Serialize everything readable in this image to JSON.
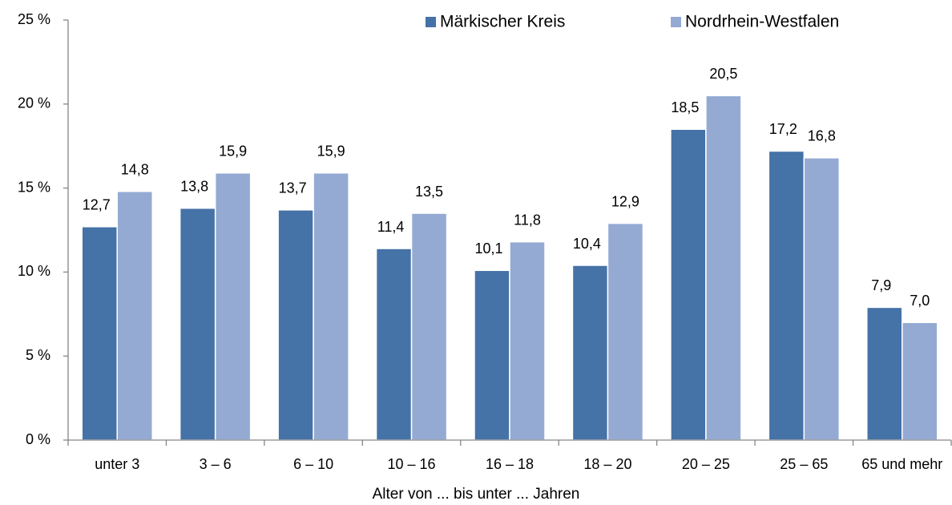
{
  "chart_data": {
    "type": "bar",
    "x_label": "Alter von ... bis unter ... Jahren",
    "categories": [
      "unter 3",
      "3 – 6",
      "6 – 10",
      "10 – 16",
      "16 – 18",
      "18 – 20",
      "20 – 25",
      "25 – 65",
      "65 und mehr"
    ],
    "series": [
      {
        "name": "Märkischer Kreis",
        "color": "#4572a7",
        "values": [
          12.7,
          13.8,
          13.7,
          11.4,
          10.1,
          10.4,
          18.5,
          17.2,
          7.9
        ],
        "value_labels": [
          "12,7",
          "13,8",
          "13,7",
          "11,4",
          "10,1",
          "10,4",
          "18,5",
          "17,2",
          "7,9"
        ]
      },
      {
        "name": "Nordrhein-Westfalen",
        "color": "#94aad3",
        "values": [
          14.8,
          15.9,
          15.9,
          13.5,
          11.8,
          12.9,
          20.5,
          16.8,
          7.0
        ],
        "value_labels": [
          "14,8",
          "15,9",
          "15,9",
          "13,5",
          "11,8",
          "12,9",
          "20,5",
          "16,8",
          "7,0"
        ]
      }
    ],
    "ylim": [
      0,
      25
    ],
    "yticks": [
      {
        "value": 0,
        "label": "0 %"
      },
      {
        "value": 5,
        "label": "5 %"
      },
      {
        "value": 10,
        "label": "10 %"
      },
      {
        "value": 15,
        "label": "15 %"
      },
      {
        "value": 20,
        "label": "20 %"
      },
      {
        "value": 25,
        "label": "25 %"
      }
    ],
    "grid": false,
    "legend": "top"
  }
}
